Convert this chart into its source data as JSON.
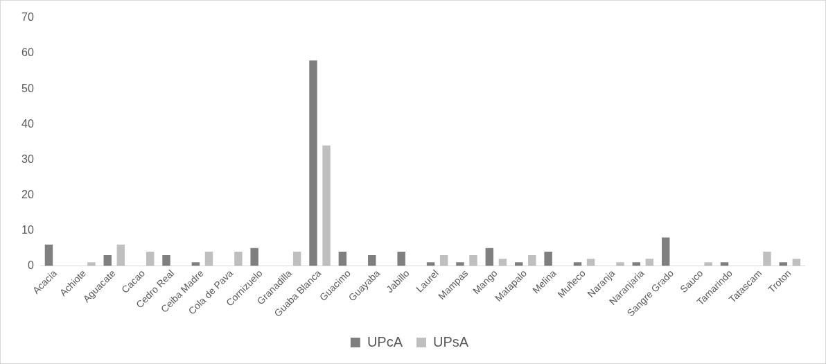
{
  "chart_data": {
    "type": "bar",
    "categories": [
      "Acacia",
      "Achiote",
      "Aguacate",
      "Cacao",
      "Cedro Real",
      "Ceiba Madre",
      "Cola de Pava",
      "Cornizuelo",
      "Granadilla",
      "Guaba Blanca",
      "Guacimo",
      "Guayaba",
      "Jabillo",
      "Laurel",
      "Mampas",
      "Mango",
      "Matapalo",
      "Melina",
      "Muñeco",
      "Naranja",
      "Naranjaria",
      "Sangre Grado",
      "Sauco",
      "Tamarindo",
      "Tatascam",
      "Troton"
    ],
    "series": [
      {
        "name": "UPcA",
        "color": "#7f7f7f",
        "values": [
          6,
          0,
          3,
          0,
          3,
          1,
          0,
          5,
          0,
          58,
          4,
          3,
          4,
          1,
          1,
          5,
          1,
          4,
          1,
          0,
          1,
          8,
          0,
          1,
          0,
          1
        ]
      },
      {
        "name": "UPsA",
        "color": "#bfbfbf",
        "values": [
          0,
          1,
          6,
          4,
          0,
          4,
          4,
          0,
          4,
          34,
          0,
          0,
          0,
          3,
          3,
          2,
          3,
          0,
          2,
          1,
          2,
          0,
          1,
          0,
          4,
          2
        ]
      }
    ],
    "ylim": [
      0,
      70
    ],
    "yticks": [
      0,
      10,
      20,
      30,
      40,
      50,
      60,
      70
    ],
    "grid": false,
    "legend": "bottom"
  }
}
